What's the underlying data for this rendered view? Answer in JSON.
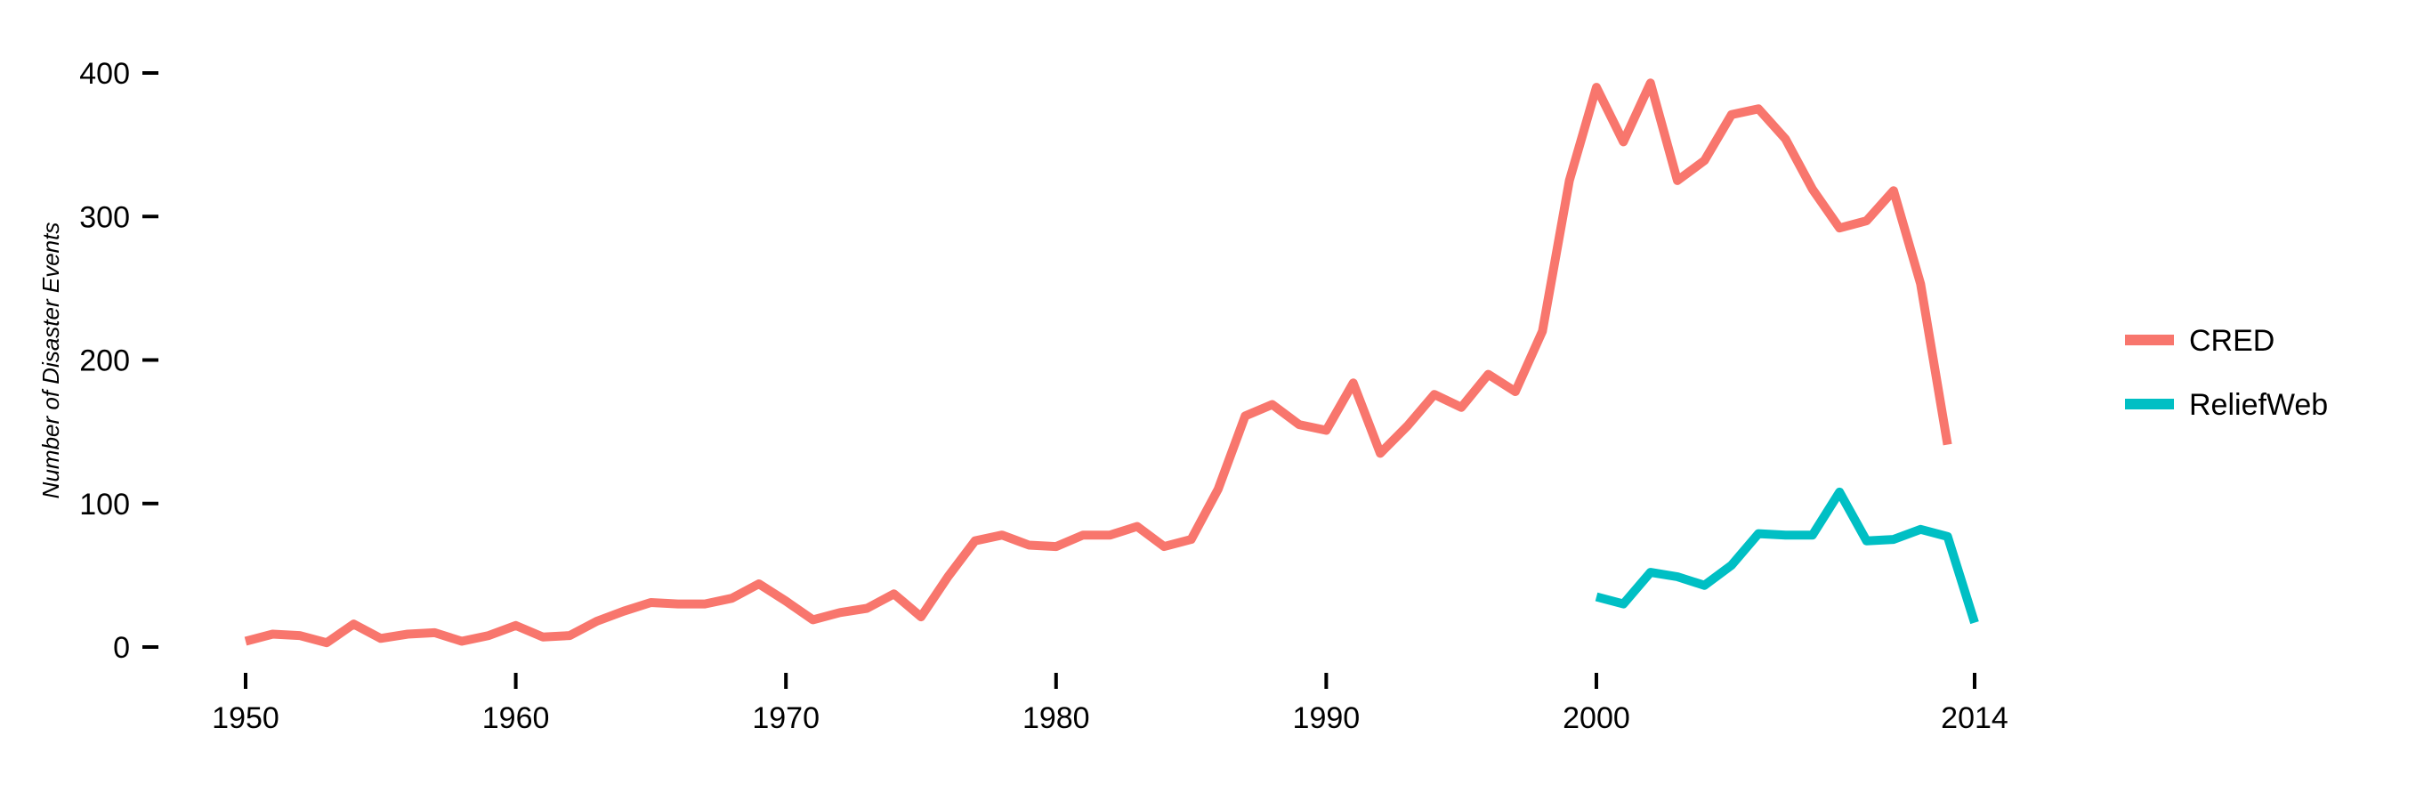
{
  "chart_data": {
    "type": "line",
    "title": "",
    "xlabel": "",
    "ylabel": "Number of Disaster Events",
    "xlim": [
      1950,
      2014
    ],
    "ylim": [
      0,
      400
    ],
    "x_ticks": [
      1950,
      1960,
      1970,
      1980,
      1990,
      2000,
      2014
    ],
    "y_ticks": [
      0,
      100,
      200,
      300,
      400
    ],
    "grid": false,
    "legend_position": "right",
    "series": [
      {
        "name": "CRED",
        "color": "#F8766D",
        "x": [
          1950,
          1951,
          1952,
          1953,
          1954,
          1955,
          1956,
          1957,
          1958,
          1959,
          1960,
          1961,
          1962,
          1963,
          1964,
          1965,
          1966,
          1967,
          1968,
          1969,
          1970,
          1971,
          1972,
          1973,
          1974,
          1975,
          1976,
          1977,
          1978,
          1979,
          1980,
          1981,
          1982,
          1983,
          1984,
          1985,
          1986,
          1987,
          1988,
          1989,
          1990,
          1991,
          1992,
          1993,
          1994,
          1995,
          1996,
          1997,
          1998,
          1999,
          2000,
          2001,
          2002,
          2003,
          2004,
          2005,
          2006,
          2007,
          2008,
          2009,
          2010,
          2011,
          2012,
          2013
        ],
        "y": [
          4,
          9,
          8,
          3,
          16,
          6,
          9,
          10,
          4,
          8,
          15,
          7,
          8,
          18,
          25,
          31,
          30,
          30,
          34,
          44,
          32,
          19,
          24,
          27,
          37,
          21,
          49,
          74,
          78,
          71,
          70,
          78,
          78,
          84,
          70,
          75,
          110,
          161,
          169,
          155,
          151,
          184,
          135,
          154,
          176,
          167,
          190,
          178,
          220,
          325,
          390,
          352,
          393,
          325,
          339,
          371,
          375,
          354,
          319,
          292,
          297,
          318,
          253,
          141
        ]
      },
      {
        "name": "ReliefWeb",
        "color": "#00BFC4",
        "x": [
          2000,
          2001,
          2002,
          2003,
          2004,
          2005,
          2006,
          2007,
          2008,
          2009,
          2010,
          2011,
          2012,
          2013,
          2014
        ],
        "y": [
          35,
          30,
          52,
          49,
          43,
          57,
          79,
          78,
          78,
          108,
          74,
          75,
          82,
          77,
          17
        ]
      }
    ]
  }
}
